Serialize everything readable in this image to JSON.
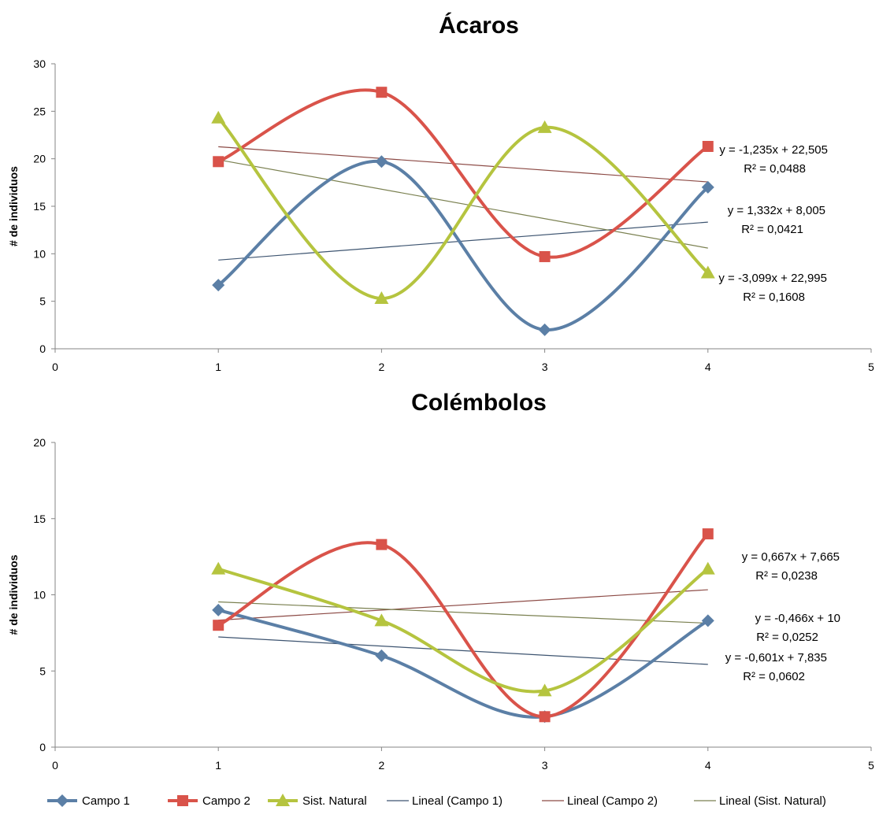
{
  "colors": {
    "campo1": "#5b7fa6",
    "campo2": "#d9534a",
    "natural": "#b5c43f",
    "lin_campo1": "#3d5470",
    "lin_campo2": "#8c4a45",
    "lin_natural": "#7a8050"
  },
  "chart_data": [
    {
      "type": "line",
      "title": "Ácaros",
      "ylabel": "# de individuos",
      "xlim": [
        0,
        5
      ],
      "ylim": [
        0,
        30
      ],
      "xticks": [
        "0",
        "1",
        "2",
        "3",
        "4",
        "5"
      ],
      "yticks": [
        "0",
        "5",
        "10",
        "15",
        "20",
        "25",
        "30"
      ],
      "x": [
        1,
        2,
        3,
        4
      ],
      "series": [
        {
          "name": "Campo 1",
          "values": [
            6.7,
            19.7,
            2.0,
            17.0
          ]
        },
        {
          "name": "Campo 2",
          "values": [
            19.7,
            27.0,
            9.7,
            21.3
          ]
        },
        {
          "name": "Sist. Natural",
          "values": [
            24.3,
            5.3,
            23.3,
            8.0
          ]
        }
      ],
      "trendlines": [
        {
          "name": "Lineal (Campo 1)",
          "slope": 1.332,
          "intercept": 8.005,
          "eq": "y = 1,332x + 8,005",
          "r2": "R² = 0,0421"
        },
        {
          "name": "Lineal (Campo 2)",
          "slope": -1.235,
          "intercept": 22.505,
          "eq": "y = -1,235x + 22,505",
          "r2": "R² = 0,0488"
        },
        {
          "name": "Lineal (Sist. Natural)",
          "slope": -3.099,
          "intercept": 22.995,
          "eq": "y = -3,099x + 22,995",
          "r2": "R² = 0,1608"
        }
      ]
    },
    {
      "type": "line",
      "title": "Colémbolos",
      "ylabel": "# de individuos",
      "xlim": [
        0,
        5
      ],
      "ylim": [
        0,
        20
      ],
      "xticks": [
        "0",
        "1",
        "2",
        "3",
        "4",
        "5"
      ],
      "yticks": [
        "0",
        "5",
        "10",
        "15",
        "20"
      ],
      "x": [
        1,
        2,
        3,
        4
      ],
      "series": [
        {
          "name": "Campo 1",
          "values": [
            9.0,
            6.0,
            2.0,
            8.3
          ]
        },
        {
          "name": "Campo 2",
          "values": [
            8.0,
            13.3,
            2.0,
            14.0
          ]
        },
        {
          "name": "Sist. Natural",
          "values": [
            11.7,
            8.3,
            3.7,
            11.7
          ]
        }
      ],
      "trendlines": [
        {
          "name": "Lineal (Campo 1)",
          "slope": -0.601,
          "intercept": 7.835,
          "eq": "y = -0,601x + 7,835",
          "r2": "R² = 0,0602"
        },
        {
          "name": "Lineal (Campo 2)",
          "slope": 0.667,
          "intercept": 7.665,
          "eq": "y = 0,667x + 7,665",
          "r2": "R² = 0,0238"
        },
        {
          "name": "Lineal (Sist. Natural)",
          "slope": -0.466,
          "intercept": 10,
          "eq": "y = -0,466x + 10",
          "r2": "R² = 0,0252"
        }
      ]
    }
  ],
  "legend": {
    "items": [
      "Campo 1",
      "Campo 2",
      "Sist. Natural",
      "Lineal (Campo 1)",
      "Lineal (Campo 2)",
      "Lineal (Sist. Natural)"
    ]
  }
}
